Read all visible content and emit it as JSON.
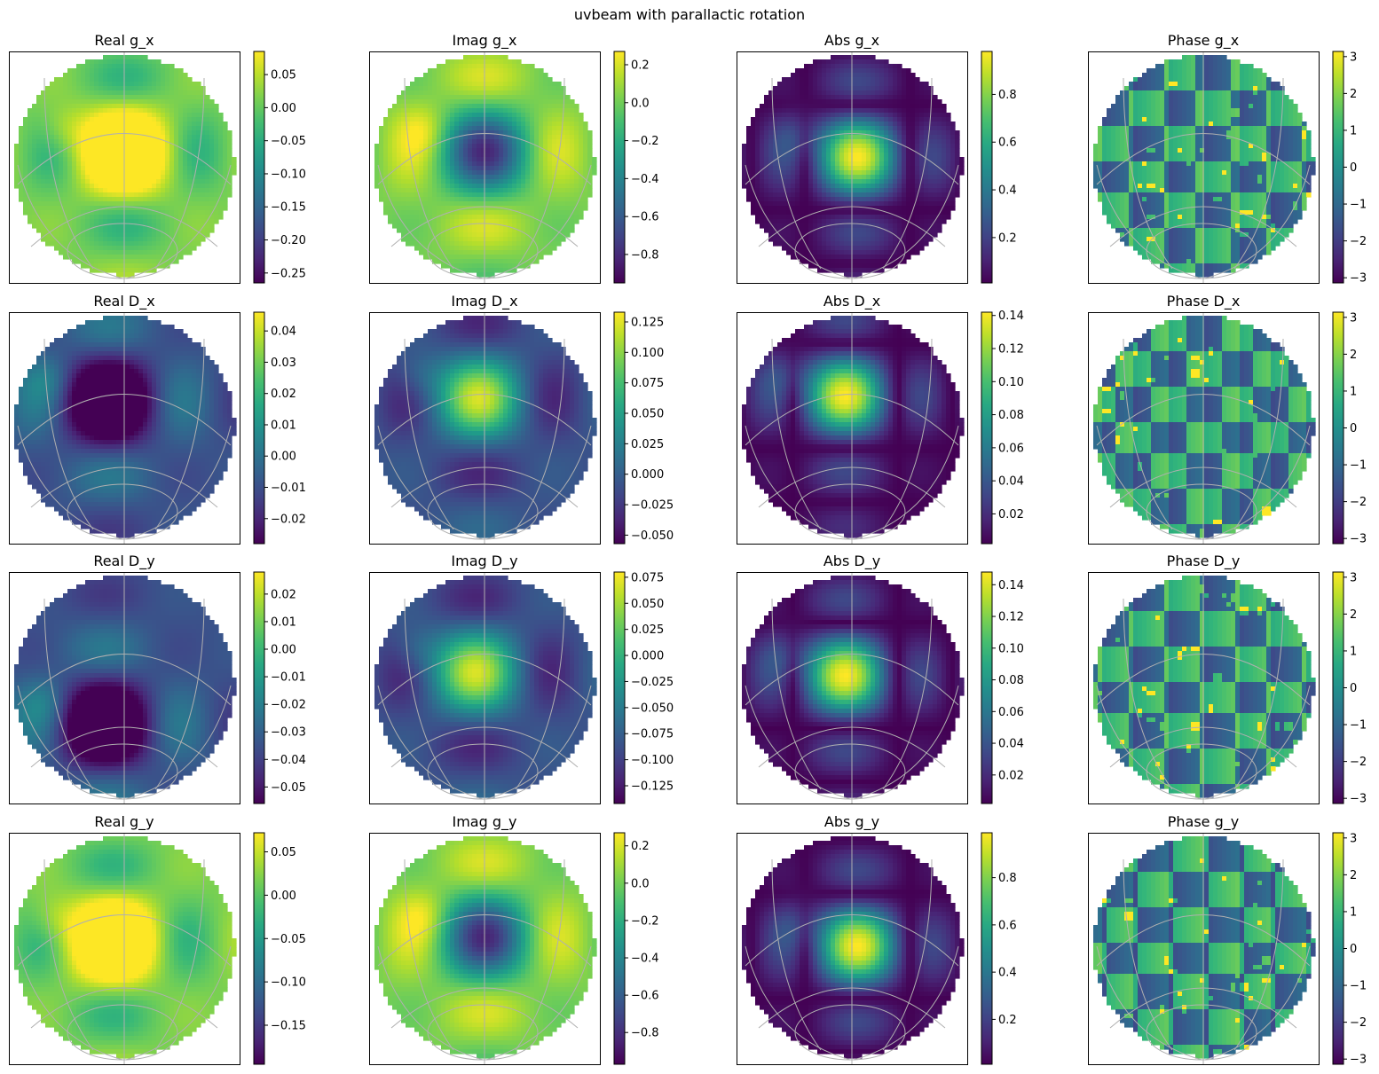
{
  "figure_title": "uvbeam with parallactic rotation",
  "colormap": "viridis",
  "grid_color": "#b0b0b0",
  "chart_data": [
    {
      "type": "heatmap",
      "title": "Real g_x",
      "component": "real",
      "pattern": "g",
      "center": [
        0.0,
        0.12
      ],
      "colorbar": {
        "ticks": [
          0.05,
          0.0,
          -0.05,
          -0.1,
          -0.15,
          -0.2,
          -0.25
        ],
        "tick_labels": [
          "0.05",
          "0.00",
          "−0.05",
          "−0.10",
          "−0.15",
          "−0.20",
          "−0.25"
        ],
        "range": [
          -0.265,
          0.085
        ]
      }
    },
    {
      "type": "heatmap",
      "title": "Imag g_x",
      "component": "imag",
      "pattern": "g",
      "center": [
        0.0,
        0.12
      ],
      "colorbar": {
        "ticks": [
          0.2,
          0.0,
          -0.2,
          -0.4,
          -0.6,
          -0.8
        ],
        "tick_labels": [
          "0.2",
          "0.0",
          "−0.2",
          "−0.4",
          "−0.6",
          "−0.8"
        ],
        "range": [
          -0.95,
          0.27
        ]
      }
    },
    {
      "type": "heatmap",
      "title": "Abs g_x",
      "component": "abs",
      "pattern": "g",
      "center": [
        0.05,
        0.07
      ],
      "colorbar": {
        "ticks": [
          0.8,
          0.6,
          0.4,
          0.2
        ],
        "tick_labels": [
          "0.8",
          "0.6",
          "0.4",
          "0.2"
        ],
        "range": [
          0.01,
          0.98
        ]
      }
    },
    {
      "type": "heatmap",
      "title": "Phase g_x",
      "component": "phase",
      "pattern": "g",
      "center": [
        0.0,
        0.1
      ],
      "colorbar": {
        "ticks": [
          3,
          2,
          1,
          0,
          -1,
          -2,
          -3
        ],
        "tick_labels": [
          "3",
          "2",
          "1",
          "0",
          "−1",
          "−2",
          "−3"
        ],
        "range": [
          -3.14,
          3.14
        ]
      }
    },
    {
      "type": "heatmap",
      "title": "Real D_x",
      "component": "real",
      "pattern": "D",
      "center": [
        -0.14,
        0.22
      ],
      "colorbar": {
        "ticks": [
          0.04,
          0.03,
          0.02,
          0.01,
          0.0,
          -0.01,
          -0.02
        ],
        "tick_labels": [
          "0.04",
          "0.03",
          "0.02",
          "0.01",
          "0.00",
          "−0.01",
          "−0.02"
        ],
        "range": [
          -0.028,
          0.046
        ]
      }
    },
    {
      "type": "heatmap",
      "title": "Imag D_x",
      "component": "imag",
      "pattern": "D",
      "center": [
        -0.05,
        0.25
      ],
      "colorbar": {
        "ticks": [
          0.125,
          0.1,
          0.075,
          0.05,
          0.025,
          0.0,
          -0.025,
          -0.05
        ],
        "tick_labels": [
          "0.125",
          "0.100",
          "0.075",
          "0.050",
          "0.025",
          "0.000",
          "−0.025",
          "−0.050"
        ],
        "range": [
          -0.057,
          0.133
        ]
      }
    },
    {
      "type": "heatmap",
      "title": "Abs D_x",
      "component": "abs",
      "pattern": "D",
      "center": [
        -0.06,
        0.27
      ],
      "colorbar": {
        "ticks": [
          0.14,
          0.12,
          0.1,
          0.08,
          0.06,
          0.04,
          0.02
        ],
        "tick_labels": [
          "0.14",
          "0.12",
          "0.10",
          "0.08",
          "0.06",
          "0.04",
          "0.02"
        ],
        "range": [
          0.002,
          0.142
        ]
      }
    },
    {
      "type": "heatmap",
      "title": "Phase D_x",
      "component": "phase",
      "pattern": "D",
      "center": [
        -0.05,
        0.22
      ],
      "colorbar": {
        "ticks": [
          3,
          2,
          1,
          0,
          -1,
          -2,
          -3
        ],
        "tick_labels": [
          "3",
          "2",
          "1",
          "0",
          "−1",
          "−2",
          "−3"
        ],
        "range": [
          -3.14,
          3.14
        ]
      }
    },
    {
      "type": "heatmap",
      "title": "Real D_y",
      "component": "real",
      "pattern": "D",
      "center": [
        -0.17,
        -0.35
      ],
      "colorbar": {
        "ticks": [
          0.02,
          0.01,
          0.0,
          -0.01,
          -0.02,
          -0.03,
          -0.04,
          -0.05
        ],
        "tick_labels": [
          "0.02",
          "0.01",
          "0.00",
          "−0.01",
          "−0.02",
          "−0.03",
          "−0.04",
          "−0.05"
        ],
        "range": [
          -0.056,
          0.028
        ]
      }
    },
    {
      "type": "heatmap",
      "title": "Imag D_y",
      "component": "imag",
      "pattern": "D",
      "center": [
        -0.08,
        0.12
      ],
      "colorbar": {
        "ticks": [
          0.075,
          0.05,
          0.025,
          0.0,
          -0.025,
          -0.05,
          -0.075,
          -0.1,
          -0.125
        ],
        "tick_labels": [
          "0.075",
          "0.050",
          "0.025",
          "0.000",
          "−0.025",
          "−0.050",
          "−0.075",
          "−0.100",
          "−0.125"
        ],
        "range": [
          -0.142,
          0.08
        ]
      }
    },
    {
      "type": "heatmap",
      "title": "Abs D_y",
      "component": "abs",
      "pattern": "D",
      "center": [
        -0.06,
        0.09
      ],
      "colorbar": {
        "ticks": [
          0.14,
          0.12,
          0.1,
          0.08,
          0.06,
          0.04,
          0.02
        ],
        "tick_labels": [
          "0.14",
          "0.12",
          "0.10",
          "0.08",
          "0.06",
          "0.04",
          "0.02"
        ],
        "range": [
          0.002,
          0.148
        ]
      }
    },
    {
      "type": "heatmap",
      "title": "Phase D_y",
      "component": "phase",
      "pattern": "D",
      "center": [
        -0.04,
        0.1
      ],
      "colorbar": {
        "ticks": [
          3,
          2,
          1,
          0,
          -1,
          -2,
          -3
        ],
        "tick_labels": [
          "3",
          "2",
          "1",
          "0",
          "−1",
          "−2",
          "−3"
        ],
        "range": [
          -3.14,
          3.14
        ]
      }
    },
    {
      "type": "heatmap",
      "title": "Real g_y",
      "component": "real",
      "pattern": "g",
      "center": [
        -0.1,
        0.05
      ],
      "colorbar": {
        "ticks": [
          0.05,
          0.0,
          -0.05,
          -0.1,
          -0.15
        ],
        "tick_labels": [
          "0.05",
          "0.00",
          "−0.05",
          "−0.10",
          "−0.15"
        ],
        "range": [
          -0.195,
          0.072
        ]
      }
    },
    {
      "type": "heatmap",
      "title": "Imag g_y",
      "component": "imag",
      "pattern": "g",
      "center": [
        0.0,
        0.08
      ],
      "colorbar": {
        "ticks": [
          0.2,
          0.0,
          -0.2,
          -0.4,
          -0.6,
          -0.8
        ],
        "tick_labels": [
          "0.2",
          "0.0",
          "−0.2",
          "−0.4",
          "−0.6",
          "−0.8"
        ],
        "range": [
          -0.97,
          0.27
        ]
      }
    },
    {
      "type": "heatmap",
      "title": "Abs g_y",
      "component": "abs",
      "pattern": "g",
      "center": [
        0.05,
        0.0
      ],
      "colorbar": {
        "ticks": [
          0.8,
          0.6,
          0.4,
          0.2
        ],
        "tick_labels": [
          "0.8",
          "0.6",
          "0.4",
          "0.2"
        ],
        "range": [
          0.01,
          0.99
        ]
      }
    },
    {
      "type": "heatmap",
      "title": "Phase g_y",
      "component": "phase",
      "pattern": "g",
      "center": [
        0.0,
        0.02
      ],
      "colorbar": {
        "ticks": [
          3,
          2,
          1,
          0,
          -1,
          -2,
          -3
        ],
        "tick_labels": [
          "3",
          "2",
          "1",
          "0",
          "−1",
          "−2",
          "−3"
        ],
        "range": [
          -3.14,
          3.14
        ]
      }
    }
  ]
}
